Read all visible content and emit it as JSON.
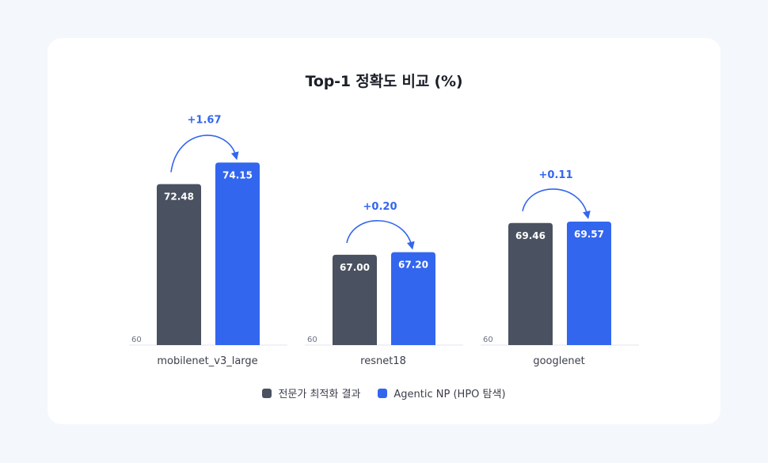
{
  "chart_data": {
    "type": "bar",
    "title": "Top-1 정확도 비교 (%)",
    "categories": [
      "mobilenet_v3_large",
      "resnet18",
      "googlenet"
    ],
    "series": [
      {
        "name": "전문가 최적화 결과",
        "values": [
          72.48,
          67.0,
          69.46
        ],
        "color": "#4a5160"
      },
      {
        "name": "Agentic NP (HPO 탐색)",
        "values": [
          74.15,
          67.2,
          69.57
        ],
        "color": "#3366ee"
      }
    ],
    "deltas": [
      "+1.67",
      "+0.20",
      "+0.11"
    ],
    "ylim": [
      60,
      75
    ],
    "baseline_label": "60",
    "legend_position": "bottom-center"
  }
}
